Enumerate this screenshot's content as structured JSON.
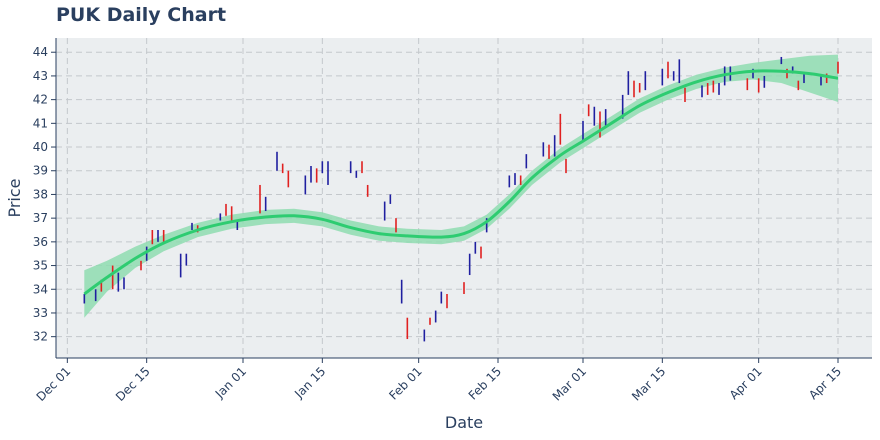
{
  "chart_data": {
    "type": "ohlc",
    "title": "PUK Daily Chart",
    "xlabel": "Date",
    "ylabel": "Price",
    "ylim": [
      31.1,
      44.6
    ],
    "yticks": [
      32,
      33,
      34,
      35,
      36,
      37,
      38,
      39,
      40,
      41,
      42,
      43,
      44
    ],
    "xlim": [
      "2019-11-29",
      "2020-04-21"
    ],
    "xticks": [
      {
        "date": "2019-12-01",
        "label": "Dec 01"
      },
      {
        "date": "2019-12-15",
        "label": "Dec 15"
      },
      {
        "date": "2020-01-01",
        "label": "Jan 01"
      },
      {
        "date": "2020-01-15",
        "label": "Jan 15"
      },
      {
        "date": "2020-02-01",
        "label": "Feb 01"
      },
      {
        "date": "2020-02-15",
        "label": "Feb 15"
      },
      {
        "date": "2020-03-01",
        "label": "Mar 01"
      },
      {
        "date": "2020-03-15",
        "label": "Mar 15"
      },
      {
        "date": "2020-04-01",
        "label": "Apr 01"
      },
      {
        "date": "2020-04-15",
        "label": "Apr 15"
      }
    ],
    "grid": true,
    "colors": {
      "up": "#1f1fa0",
      "down": "#e02020",
      "trend": "#2ecc71",
      "band": "#8fdcb0",
      "plot_bg": "#ebeef0"
    },
    "bars": [
      {
        "date": "2019-12-04",
        "low": 33.4,
        "high": 33.8,
        "dir": "up"
      },
      {
        "date": "2019-12-06",
        "low": 33.5,
        "high": 34.0,
        "dir": "up"
      },
      {
        "date": "2019-12-07",
        "low": 33.9,
        "high": 34.4,
        "dir": "down"
      },
      {
        "date": "2019-12-09",
        "low": 34.0,
        "high": 35.0,
        "dir": "down"
      },
      {
        "date": "2019-12-10",
        "low": 33.9,
        "high": 34.7,
        "dir": "up"
      },
      {
        "date": "2019-12-11",
        "low": 34.0,
        "high": 34.5,
        "dir": "up"
      },
      {
        "date": "2019-12-14",
        "low": 34.8,
        "high": 35.2,
        "dir": "down"
      },
      {
        "date": "2019-12-15",
        "low": 35.2,
        "high": 35.8,
        "dir": "up"
      },
      {
        "date": "2019-12-16",
        "low": 35.9,
        "high": 36.5,
        "dir": "down"
      },
      {
        "date": "2019-12-17",
        "low": 36.0,
        "high": 36.5,
        "dir": "up"
      },
      {
        "date": "2019-12-18",
        "low": 35.9,
        "high": 36.5,
        "dir": "down"
      },
      {
        "date": "2019-12-21",
        "low": 34.5,
        "high": 35.5,
        "dir": "up"
      },
      {
        "date": "2019-12-22",
        "low": 35.0,
        "high": 35.5,
        "dir": "up"
      },
      {
        "date": "2019-12-23",
        "low": 36.5,
        "high": 36.8,
        "dir": "up"
      },
      {
        "date": "2019-12-24",
        "low": 36.4,
        "high": 36.7,
        "dir": "down"
      },
      {
        "date": "2019-12-28",
        "low": 36.9,
        "high": 37.2,
        "dir": "up"
      },
      {
        "date": "2019-12-29",
        "low": 37.1,
        "high": 37.6,
        "dir": "down"
      },
      {
        "date": "2019-12-30",
        "low": 36.9,
        "high": 37.5,
        "dir": "down"
      },
      {
        "date": "2019-12-31",
        "low": 36.5,
        "high": 36.9,
        "dir": "up"
      },
      {
        "date": "2020-01-04",
        "low": 37.2,
        "high": 38.4,
        "dir": "down"
      },
      {
        "date": "2020-01-05",
        "low": 37.3,
        "high": 37.9,
        "dir": "up"
      },
      {
        "date": "2020-01-07",
        "low": 39.0,
        "high": 39.8,
        "dir": "up"
      },
      {
        "date": "2020-01-08",
        "low": 38.9,
        "high": 39.3,
        "dir": "down"
      },
      {
        "date": "2020-01-09",
        "low": 38.3,
        "high": 39.0,
        "dir": "down"
      },
      {
        "date": "2020-01-12",
        "low": 38.0,
        "high": 38.8,
        "dir": "up"
      },
      {
        "date": "2020-01-13",
        "low": 38.5,
        "high": 39.2,
        "dir": "up"
      },
      {
        "date": "2020-01-14",
        "low": 38.5,
        "high": 39.1,
        "dir": "down"
      },
      {
        "date": "2020-01-15",
        "low": 38.9,
        "high": 39.4,
        "dir": "up"
      },
      {
        "date": "2020-01-16",
        "low": 38.4,
        "high": 39.4,
        "dir": "up"
      },
      {
        "date": "2020-01-20",
        "low": 38.9,
        "high": 39.4,
        "dir": "up"
      },
      {
        "date": "2020-01-21",
        "low": 38.7,
        "high": 39.0,
        "dir": "up"
      },
      {
        "date": "2020-01-22",
        "low": 38.9,
        "high": 39.4,
        "dir": "down"
      },
      {
        "date": "2020-01-23",
        "low": 37.9,
        "high": 38.4,
        "dir": "down"
      },
      {
        "date": "2020-01-26",
        "low": 36.9,
        "high": 37.7,
        "dir": "up"
      },
      {
        "date": "2020-01-27",
        "low": 37.6,
        "high": 38.0,
        "dir": "up"
      },
      {
        "date": "2020-01-28",
        "low": 36.4,
        "high": 37.0,
        "dir": "down"
      },
      {
        "date": "2020-01-29",
        "low": 33.4,
        "high": 34.4,
        "dir": "up"
      },
      {
        "date": "2020-01-30",
        "low": 31.9,
        "high": 32.8,
        "dir": "down"
      },
      {
        "date": "2020-02-02",
        "low": 31.8,
        "high": 32.3,
        "dir": "up"
      },
      {
        "date": "2020-02-03",
        "low": 32.5,
        "high": 32.8,
        "dir": "down"
      },
      {
        "date": "2020-02-04",
        "low": 32.6,
        "high": 33.1,
        "dir": "up"
      },
      {
        "date": "2020-02-05",
        "low": 33.4,
        "high": 33.9,
        "dir": "up"
      },
      {
        "date": "2020-02-06",
        "low": 33.2,
        "high": 33.8,
        "dir": "down"
      },
      {
        "date": "2020-02-09",
        "low": 33.8,
        "high": 34.3,
        "dir": "down"
      },
      {
        "date": "2020-02-10",
        "low": 34.6,
        "high": 35.5,
        "dir": "up"
      },
      {
        "date": "2020-02-11",
        "low": 35.5,
        "high": 36.0,
        "dir": "up"
      },
      {
        "date": "2020-02-12",
        "low": 35.3,
        "high": 35.8,
        "dir": "down"
      },
      {
        "date": "2020-02-13",
        "low": 36.4,
        "high": 37.0,
        "dir": "up"
      },
      {
        "date": "2020-02-17",
        "low": 38.3,
        "high": 38.8,
        "dir": "up"
      },
      {
        "date": "2020-02-18",
        "low": 38.4,
        "high": 38.9,
        "dir": "up"
      },
      {
        "date": "2020-02-19",
        "low": 38.4,
        "high": 38.8,
        "dir": "down"
      },
      {
        "date": "2020-02-20",
        "low": 39.1,
        "high": 39.7,
        "dir": "up"
      },
      {
        "date": "2020-02-23",
        "low": 39.6,
        "high": 40.2,
        "dir": "up"
      },
      {
        "date": "2020-02-24",
        "low": 39.5,
        "high": 40.1,
        "dir": "down"
      },
      {
        "date": "2020-02-25",
        "low": 39.6,
        "high": 40.5,
        "dir": "up"
      },
      {
        "date": "2020-02-26",
        "low": 40.1,
        "high": 41.4,
        "dir": "down"
      },
      {
        "date": "2020-02-27",
        "low": 38.9,
        "high": 39.5,
        "dir": "down"
      },
      {
        "date": "2020-03-01",
        "low": 40.2,
        "high": 41.1,
        "dir": "up"
      },
      {
        "date": "2020-03-02",
        "low": 41.3,
        "high": 41.8,
        "dir": "down"
      },
      {
        "date": "2020-03-03",
        "low": 40.9,
        "high": 41.7,
        "dir": "up"
      },
      {
        "date": "2020-03-04",
        "low": 40.4,
        "high": 41.5,
        "dir": "down"
      },
      {
        "date": "2020-03-05",
        "low": 40.9,
        "high": 41.6,
        "dir": "up"
      },
      {
        "date": "2020-03-08",
        "low": 41.2,
        "high": 42.2,
        "dir": "up"
      },
      {
        "date": "2020-03-09",
        "low": 42.2,
        "high": 43.2,
        "dir": "up"
      },
      {
        "date": "2020-03-10",
        "low": 42.1,
        "high": 42.8,
        "dir": "down"
      },
      {
        "date": "2020-03-11",
        "low": 42.3,
        "high": 42.7,
        "dir": "down"
      },
      {
        "date": "2020-03-12",
        "low": 42.4,
        "high": 43.2,
        "dir": "up"
      },
      {
        "date": "2020-03-15",
        "low": 42.6,
        "high": 43.3,
        "dir": "up"
      },
      {
        "date": "2020-03-16",
        "low": 42.9,
        "high": 43.6,
        "dir": "down"
      },
      {
        "date": "2020-03-17",
        "low": 42.8,
        "high": 43.2,
        "dir": "up"
      },
      {
        "date": "2020-03-18",
        "low": 42.7,
        "high": 43.7,
        "dir": "up"
      },
      {
        "date": "2020-03-19",
        "low": 41.9,
        "high": 42.5,
        "dir": "down"
      },
      {
        "date": "2020-03-22",
        "low": 42.1,
        "high": 42.6,
        "dir": "up"
      },
      {
        "date": "2020-03-23",
        "low": 42.2,
        "high": 42.7,
        "dir": "down"
      },
      {
        "date": "2020-03-24",
        "low": 42.3,
        "high": 42.8,
        "dir": "down"
      },
      {
        "date": "2020-03-25",
        "low": 42.2,
        "high": 42.7,
        "dir": "up"
      },
      {
        "date": "2020-03-26",
        "low": 42.6,
        "high": 43.4,
        "dir": "up"
      },
      {
        "date": "2020-03-27",
        "low": 42.8,
        "high": 43.4,
        "dir": "up"
      },
      {
        "date": "2020-03-30",
        "low": 42.4,
        "high": 42.9,
        "dir": "down"
      },
      {
        "date": "2020-03-31",
        "low": 42.9,
        "high": 43.3,
        "dir": "up"
      },
      {
        "date": "2020-04-01",
        "low": 42.3,
        "high": 42.9,
        "dir": "down"
      },
      {
        "date": "2020-04-02",
        "low": 42.5,
        "high": 43.0,
        "dir": "up"
      },
      {
        "date": "2020-04-05",
        "low": 43.5,
        "high": 43.8,
        "dir": "up"
      },
      {
        "date": "2020-04-06",
        "low": 42.9,
        "high": 43.3,
        "dir": "down"
      },
      {
        "date": "2020-04-07",
        "low": 43.1,
        "high": 43.4,
        "dir": "up"
      },
      {
        "date": "2020-04-08",
        "low": 42.4,
        "high": 42.8,
        "dir": "down"
      },
      {
        "date": "2020-04-09",
        "low": 42.7,
        "high": 43.1,
        "dir": "up"
      },
      {
        "date": "2020-04-12",
        "low": 42.6,
        "high": 43.0,
        "dir": "up"
      },
      {
        "date": "2020-04-13",
        "low": 42.7,
        "high": 43.1,
        "dir": "down"
      },
      {
        "date": "2020-04-15",
        "low": 43.1,
        "high": 43.6,
        "dir": "down"
      }
    ],
    "trend": [
      {
        "date": "2019-12-04",
        "value": 33.8,
        "band_low": 32.8,
        "band_high": 34.8
      },
      {
        "date": "2019-12-08",
        "value": 34.5,
        "band_low": 33.9,
        "band_high": 35.2
      },
      {
        "date": "2019-12-13",
        "value": 35.3,
        "band_low": 34.9,
        "band_high": 35.8
      },
      {
        "date": "2019-12-18",
        "value": 35.95,
        "band_low": 35.6,
        "band_high": 36.3
      },
      {
        "date": "2019-12-24",
        "value": 36.5,
        "band_low": 36.2,
        "band_high": 36.8
      },
      {
        "date": "2019-12-30",
        "value": 36.85,
        "band_low": 36.55,
        "band_high": 37.15
      },
      {
        "date": "2020-01-05",
        "value": 37.05,
        "band_low": 36.75,
        "band_high": 37.35
      },
      {
        "date": "2020-01-10",
        "value": 37.1,
        "band_low": 36.8,
        "band_high": 37.4
      },
      {
        "date": "2020-01-15",
        "value": 36.95,
        "band_low": 36.65,
        "band_high": 37.25
      },
      {
        "date": "2020-01-20",
        "value": 36.6,
        "band_low": 36.3,
        "band_high": 36.9
      },
      {
        "date": "2020-01-25",
        "value": 36.35,
        "band_low": 36.05,
        "band_high": 36.65
      },
      {
        "date": "2020-01-30",
        "value": 36.25,
        "band_low": 35.95,
        "band_high": 36.55
      },
      {
        "date": "2020-02-05",
        "value": 36.2,
        "band_low": 35.9,
        "band_high": 36.5
      },
      {
        "date": "2020-02-09",
        "value": 36.35,
        "band_low": 36.05,
        "band_high": 36.65
      },
      {
        "date": "2020-02-13",
        "value": 36.85,
        "band_low": 36.55,
        "band_high": 37.15
      },
      {
        "date": "2020-02-17",
        "value": 37.7,
        "band_low": 37.4,
        "band_high": 38.0
      },
      {
        "date": "2020-02-21",
        "value": 38.7,
        "band_low": 38.4,
        "band_high": 39.0
      },
      {
        "date": "2020-02-26",
        "value": 39.65,
        "band_low": 39.35,
        "band_high": 39.95
      },
      {
        "date": "2020-03-01",
        "value": 40.25,
        "band_low": 39.95,
        "band_high": 40.55
      },
      {
        "date": "2020-03-06",
        "value": 41.0,
        "band_low": 40.7,
        "band_high": 41.3
      },
      {
        "date": "2020-03-11",
        "value": 41.75,
        "band_low": 41.45,
        "band_high": 42.05
      },
      {
        "date": "2020-03-16",
        "value": 42.3,
        "band_low": 42.0,
        "band_high": 42.6
      },
      {
        "date": "2020-03-21",
        "value": 42.75,
        "band_low": 42.45,
        "band_high": 43.05
      },
      {
        "date": "2020-03-26",
        "value": 43.05,
        "band_low": 42.75,
        "band_high": 43.35
      },
      {
        "date": "2020-03-31",
        "value": 43.2,
        "band_low": 42.85,
        "band_high": 43.55
      },
      {
        "date": "2020-04-05",
        "value": 43.2,
        "band_low": 42.7,
        "band_high": 43.7
      },
      {
        "date": "2020-04-10",
        "value": 43.1,
        "band_low": 42.3,
        "band_high": 43.85
      },
      {
        "date": "2020-04-15",
        "value": 42.9,
        "band_low": 41.9,
        "band_high": 43.9
      }
    ]
  }
}
